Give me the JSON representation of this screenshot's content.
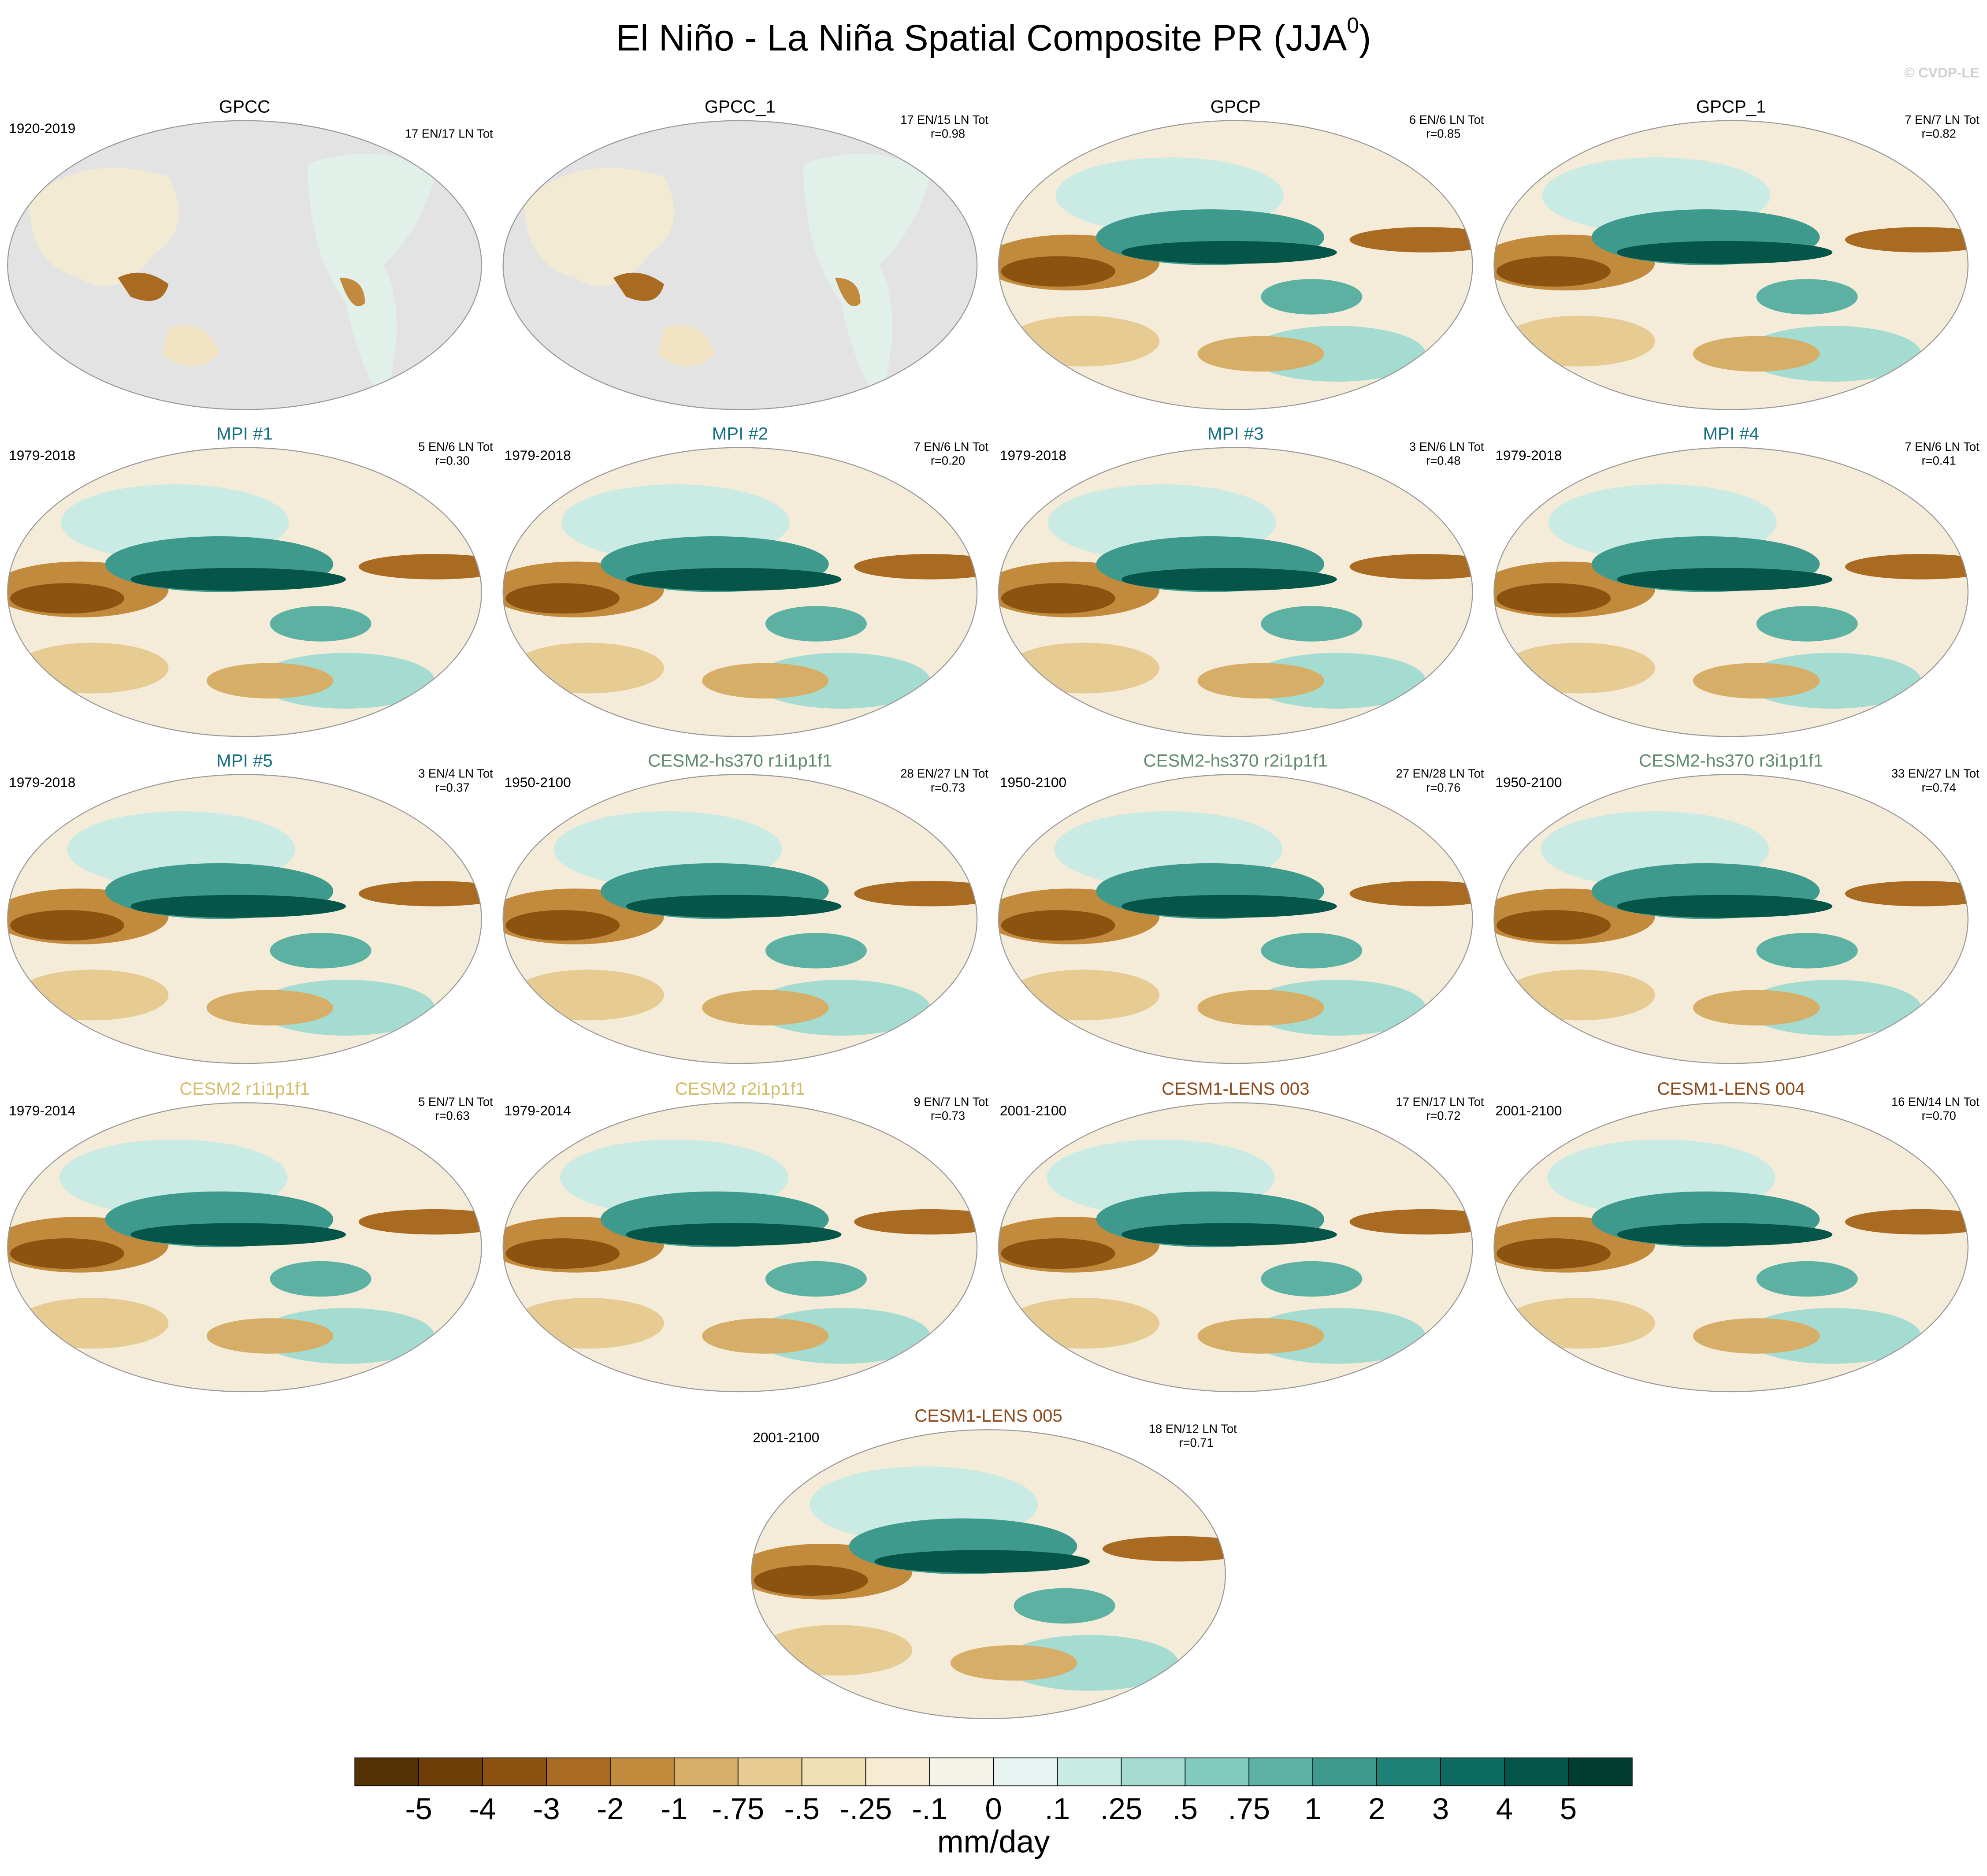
{
  "header": {
    "title": "El Niño - La Niña Spatial Composite PR (JJA",
    "title_superscript": "0",
    "title_close": ")",
    "credit": "© CVDP-LE"
  },
  "panels": [
    {
      "title": "GPCC",
      "title_color": "#000000",
      "years": "1920-2019",
      "counts": "17 EN/17 LN Tot",
      "land_only": true
    },
    {
      "title": "GPCC_1",
      "title_color": "#000000",
      "counts": "17 EN/15 LN Tot",
      "r": "r=0.98",
      "land_only": true
    },
    {
      "title": "GPCP",
      "title_color": "#000000",
      "counts": "6 EN/6 LN Tot",
      "r": "r=0.85"
    },
    {
      "title": "GPCP_1",
      "title_color": "#000000",
      "counts": "7 EN/7 LN Tot",
      "r": "r=0.82"
    },
    {
      "title": "MPI #1",
      "title_color": "#156f80",
      "years": "1979-2018",
      "counts": "5 EN/6 LN Tot",
      "r": "r=0.30"
    },
    {
      "title": "MPI #2",
      "title_color": "#156f80",
      "years": "1979-2018",
      "counts": "7 EN/6 LN Tot",
      "r": "r=0.20"
    },
    {
      "title": "MPI #3",
      "title_color": "#156f80",
      "years": "1979-2018",
      "counts": "3 EN/6 LN Tot",
      "r": "r=0.48"
    },
    {
      "title": "MPI #4",
      "title_color": "#156f80",
      "years": "1979-2018",
      "counts": "7 EN/6 LN Tot",
      "r": "r=0.41"
    },
    {
      "title": "MPI #5",
      "title_color": "#156f80",
      "years": "1979-2018",
      "counts": "3 EN/4 LN Tot",
      "r": "r=0.37"
    },
    {
      "title": "CESM2-hs370 r1i1p1f1",
      "title_color": "#5d8a6c",
      "years": "1950-2100",
      "counts": "28 EN/27 LN Tot",
      "r": "r=0.73"
    },
    {
      "title": "CESM2-hs370 r2i1p1f1",
      "title_color": "#5d8a6c",
      "years": "1950-2100",
      "counts": "27 EN/28 LN Tot",
      "r": "r=0.76"
    },
    {
      "title": "CESM2-hs370 r3i1p1f1",
      "title_color": "#5d8a6c",
      "years": "1950-2100",
      "counts": "33 EN/27 LN Tot",
      "r": "r=0.74"
    },
    {
      "title": "CESM2 r1i1p1f1",
      "title_color": "#d4bc6a",
      "years": "1979-2014",
      "counts": "5 EN/7 LN Tot",
      "r": "r=0.63"
    },
    {
      "title": "CESM2 r2i1p1f1",
      "title_color": "#d4bc6a",
      "years": "1979-2014",
      "counts": "9 EN/7 LN Tot",
      "r": "r=0.73"
    },
    {
      "title": "CESM1-LENS 003",
      "title_color": "#8c4a1c",
      "years": "2001-2100",
      "counts": "17 EN/17 LN Tot",
      "r": "r=0.72"
    },
    {
      "title": "CESM1-LENS 004",
      "title_color": "#8c4a1c",
      "years": "2001-2100",
      "counts": "16 EN/14 LN Tot",
      "r": "r=0.70"
    },
    {
      "title": "CESM1-LENS 005",
      "title_color": "#8c4a1c",
      "years": "2001-2100",
      "counts": "18 EN/12 LN Tot",
      "r": "r=0.71"
    }
  ],
  "colorbar": {
    "colors": [
      "#543005",
      "#6f3f09",
      "#8c520f",
      "#a96a22",
      "#c28a3d",
      "#d6ae68",
      "#e6cb93",
      "#f1dfb5",
      "#f6ecd3",
      "#f5f2ea",
      "#e8f4f1",
      "#c9ebe3",
      "#a5dcd1",
      "#80cbbd",
      "#5db1a2",
      "#3d9a8c",
      "#1f8278",
      "#0e6b61",
      "#055549",
      "#003c30"
    ],
    "labels": [
      "-5",
      "-4",
      "-3",
      "-2",
      "-1",
      "-.75",
      "-.5",
      "-.25",
      "-.1",
      "0",
      ".1",
      ".25",
      ".5",
      ".75",
      "1",
      "2",
      "3",
      "4",
      "5"
    ],
    "unit": "mm/day"
  }
}
